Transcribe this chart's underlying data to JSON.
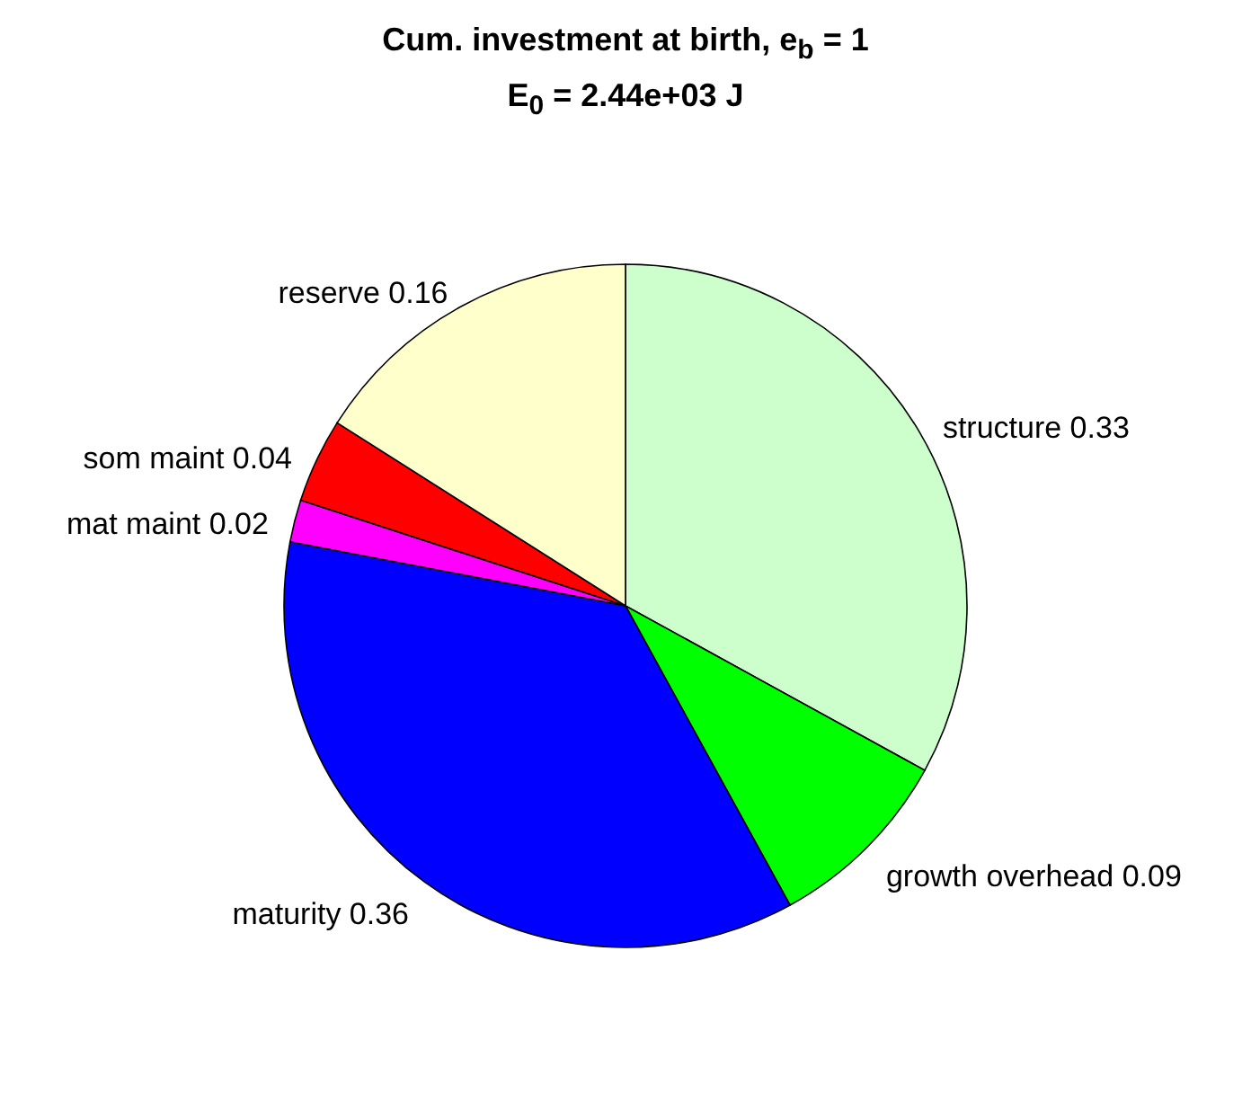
{
  "chart_data": {
    "type": "pie",
    "title": "Cum. investment at birth, e$_{b}$ = 1",
    "subtitle": "E$_{0}$ = 2.44e+03 J",
    "categories": [
      "structure 0.33",
      "growth overhead 0.09",
      "maturity 0.36",
      "mat maint 0.02",
      "som maint 0.04",
      "reserve 0.16"
    ],
    "values": [
      0.33,
      0.09,
      0.36,
      0.02,
      0.04,
      0.16
    ],
    "colors": [
      "#ccffcc",
      "#00ff00",
      "#0000ff",
      "#ff00ff",
      "#ff0000",
      "#ffffcc"
    ]
  }
}
